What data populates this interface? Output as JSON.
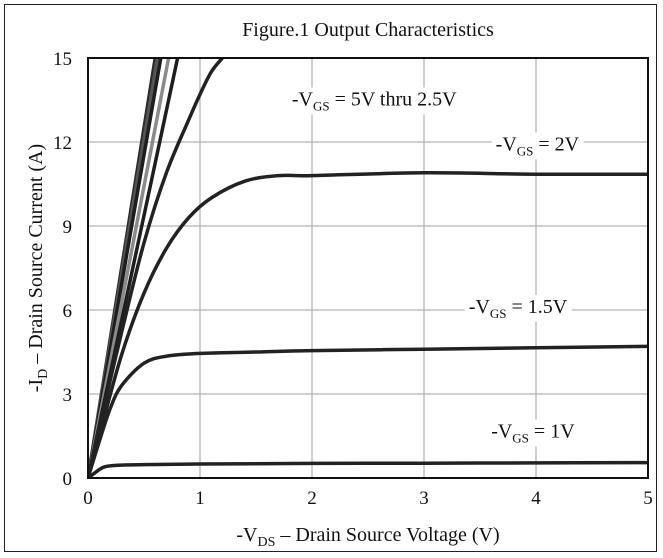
{
  "chart_data": {
    "type": "line",
    "title": "Figure.1 Output Characteristics",
    "xlabel": {
      "prefix": "-V",
      "sub": "DS",
      "suffix": " – Drain Source Voltage (V)"
    },
    "ylabel": {
      "prefix": "-I",
      "sub": "D",
      "suffix": " – Drain Source Current (A)"
    },
    "xlim": [
      0,
      5
    ],
    "ylim": [
      0,
      15
    ],
    "xticks": [
      "0",
      "1",
      "2",
      "3",
      "4",
      "5"
    ],
    "yticks": [
      "0",
      "3",
      "6",
      "9",
      "12",
      "15"
    ],
    "grid": true,
    "series": [
      {
        "color": "#2a2a2a",
        "x": [
          0,
          0.6
        ],
        "y": [
          0,
          15
        ]
      },
      {
        "color": "#555555",
        "x": [
          0,
          0.62
        ],
        "y": [
          0,
          15
        ]
      },
      {
        "color": "#1e1e1e",
        "x": [
          0,
          0.65
        ],
        "y": [
          0,
          15
        ]
      },
      {
        "color": "#8a8a8a",
        "x": [
          0,
          0.72
        ],
        "y": [
          0,
          15
        ]
      },
      {
        "color": "#1e1e1e",
        "x": [
          0,
          0.8
        ],
        "y": [
          0,
          15
        ]
      },
      {
        "color": "#222222",
        "x": [
          0,
          0.1,
          0.3,
          0.5,
          0.7,
          0.9,
          1.0,
          1.1,
          1.2
        ],
        "y": [
          0,
          1.8,
          5.2,
          8.4,
          10.9,
          12.8,
          13.7,
          14.5,
          15.0
        ]
      },
      {
        "color": "#222222",
        "x": [
          0,
          0.1,
          0.3,
          0.5,
          0.7,
          0.9,
          1.1,
          1.4,
          1.7,
          2.0,
          3.0,
          4.0,
          5.0
        ],
        "y": [
          0,
          1.5,
          4.4,
          6.6,
          8.2,
          9.3,
          10.0,
          10.6,
          10.8,
          10.8,
          10.9,
          10.85,
          10.85
        ]
      },
      {
        "color": "#222222",
        "x": [
          0,
          0.1,
          0.2,
          0.3,
          0.5,
          0.7,
          1.0,
          1.5,
          2.0,
          3.0,
          4.0,
          5.0
        ],
        "y": [
          0,
          1.3,
          2.5,
          3.3,
          4.1,
          4.35,
          4.45,
          4.5,
          4.55,
          4.6,
          4.65,
          4.7
        ]
      },
      {
        "color": "#222222",
        "x": [
          0,
          0.05,
          0.1,
          0.15,
          0.25,
          0.5,
          1.0,
          2.0,
          3.0,
          4.0,
          5.0
        ],
        "y": [
          0,
          0.15,
          0.3,
          0.4,
          0.45,
          0.48,
          0.5,
          0.52,
          0.53,
          0.54,
          0.55
        ]
      }
    ],
    "annotations": [
      {
        "prefix": "-V",
        "sub": "GS",
        "suffix": " = 5V thru 2.5V",
        "x": 1.82,
        "y": 13.3
      },
      {
        "prefix": "-V",
        "sub": "GS",
        "suffix": " = 2V",
        "x": 3.64,
        "y": 11.7
      },
      {
        "prefix": "-V",
        "sub": "GS",
        "suffix": " = 1.5V",
        "x": 3.4,
        "y": 5.9
      },
      {
        "prefix": "-V",
        "sub": "GS",
        "suffix": " = 1V",
        "x": 3.6,
        "y": 1.45
      }
    ]
  }
}
